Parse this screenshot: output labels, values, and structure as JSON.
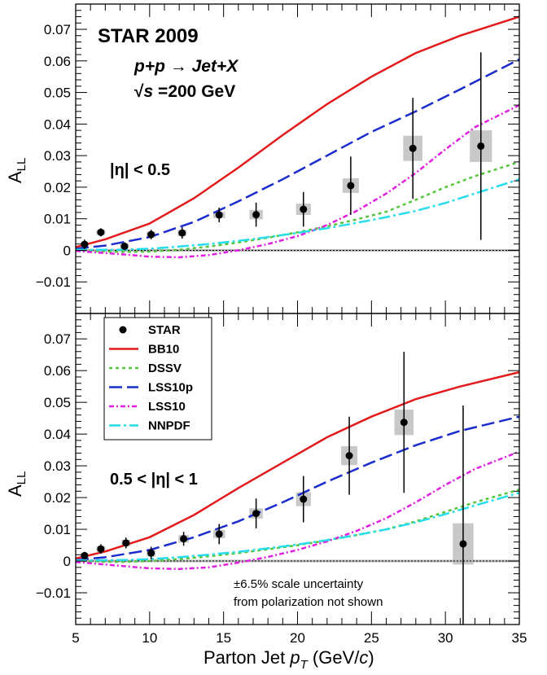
{
  "chart_data": [
    {
      "type": "scatter",
      "panel": "top",
      "ylabel_main": "A",
      "ylabel_sub": "LL",
      "xlim": [
        5,
        35
      ],
      "ylim": [
        -0.02,
        0.078
      ],
      "yticks": [
        -0.01,
        0,
        0.01,
        0.02,
        0.03,
        0.04,
        0.05,
        0.06,
        0.07
      ],
      "ytick_labels": [
        "−0.01",
        "0",
        "0.01",
        "0.02",
        "0.03",
        "0.04",
        "0.05",
        "0.06",
        "0.07"
      ],
      "annotations": {
        "title": "STAR 2009",
        "process": "p+p → Jet+X",
        "energy_prefix": "√",
        "energy_s": "s",
        "energy_value": " =200 GeV",
        "eta_range": "|η| < 0.5"
      },
      "points": [
        {
          "x": 5.6,
          "y": 0.0019,
          "err": 0.0015,
          "sx": 0.5,
          "sy": 0.0009
        },
        {
          "x": 6.7,
          "y": 0.0057,
          "err": 0.0013,
          "sx": 0.6,
          "sy": 0.0008
        },
        {
          "x": 8.3,
          "y": 0.0013,
          "err": 0.0012,
          "sx": 0.6,
          "sy": 0.0008
        },
        {
          "x": 10.1,
          "y": 0.005,
          "err": 0.0015,
          "sx": 0.6,
          "sy": 0.0009
        },
        {
          "x": 12.2,
          "y": 0.0055,
          "err": 0.0018,
          "sx": 0.6,
          "sy": 0.001
        },
        {
          "x": 14.7,
          "y": 0.0112,
          "err": 0.0023,
          "sx": 0.8,
          "sy": 0.001
        },
        {
          "x": 17.2,
          "y": 0.0113,
          "err": 0.0038,
          "sx": 0.9,
          "sy": 0.0015
        },
        {
          "x": 20.4,
          "y": 0.013,
          "err": 0.0055,
          "sx": 1.0,
          "sy": 0.0018
        },
        {
          "x": 23.6,
          "y": 0.0205,
          "err": 0.0092,
          "sx": 1.1,
          "sy": 0.0023
        },
        {
          "x": 27.8,
          "y": 0.0323,
          "err": 0.016,
          "sx": 1.3,
          "sy": 0.004
        },
        {
          "x": 32.4,
          "y": 0.033,
          "err": 0.0297,
          "sx": 1.5,
          "sy": 0.005
        }
      ],
      "series": [
        {
          "name": "BB10",
          "color": "#e31a1c",
          "dash": "none",
          "x": [
            5,
            7,
            10,
            13,
            16,
            19,
            22,
            25,
            28,
            31,
            35
          ],
          "y": [
            0.001,
            0.0035,
            0.0085,
            0.0165,
            0.0262,
            0.0365,
            0.0463,
            0.055,
            0.0625,
            0.068,
            0.074
          ]
        },
        {
          "name": "DSSV",
          "color": "#55c43a",
          "dash": "4,4",
          "x": [
            5,
            8,
            10,
            12,
            14,
            16,
            18,
            20,
            22,
            24,
            26,
            28,
            30,
            32,
            35
          ],
          "y": [
            0.0,
            -0.0005,
            -0.0004,
            0.0002,
            0.0012,
            0.0025,
            0.004,
            0.0057,
            0.0076,
            0.0098,
            0.0122,
            0.016,
            0.02,
            0.0235,
            0.028
          ]
        },
        {
          "name": "LSS10p",
          "color": "#1a2ccc",
          "dash": "16,6",
          "x": [
            5,
            7,
            10,
            13,
            16,
            19,
            22,
            25,
            28,
            31,
            35
          ],
          "y": [
            0.0005,
            0.0015,
            0.0042,
            0.009,
            0.0155,
            0.0225,
            0.03,
            0.0375,
            0.044,
            0.051,
            0.0605
          ]
        },
        {
          "name": "LSS10",
          "color": "#e020e0",
          "dash": "6,3,2,3",
          "x": [
            5,
            8,
            10,
            12,
            14,
            16,
            18,
            20,
            22,
            24,
            26,
            28,
            30,
            32,
            35
          ],
          "y": [
            -0.0002,
            -0.0012,
            -0.002,
            -0.0022,
            -0.0015,
            0.0,
            0.002,
            0.0045,
            0.008,
            0.0125,
            0.018,
            0.0245,
            0.032,
            0.039,
            0.046
          ]
        },
        {
          "name": "NNPDF",
          "color": "#27dcea",
          "dash": "14,4,3,4",
          "x": [
            5,
            8,
            10,
            12,
            14,
            16,
            18,
            20,
            22,
            24,
            26,
            28,
            30,
            32,
            35
          ],
          "y": [
            0.0002,
            0.0002,
            0.0005,
            0.0012,
            0.002,
            0.003,
            0.0042,
            0.0055,
            0.007,
            0.0087,
            0.0105,
            0.0125,
            0.015,
            0.018,
            0.0225
          ]
        }
      ]
    },
    {
      "type": "scatter",
      "panel": "bottom",
      "ylabel_main": "A",
      "ylabel_sub": "LL",
      "xlabel_main": "Parton Jet ",
      "xlabel_p": "p",
      "xlabel_sub": "T",
      "xlabel_unit_pre": " (GeV/",
      "xlabel_c": "c",
      "xlabel_unit_post": ")",
      "xlim": [
        5,
        35
      ],
      "ylim": [
        -0.02,
        0.078
      ],
      "xticks": [
        5,
        10,
        15,
        20,
        25,
        30,
        35
      ],
      "xtick_labels": [
        "5",
        "10",
        "15",
        "20",
        "25",
        "30",
        "35"
      ],
      "yticks": [
        -0.01,
        0,
        0.01,
        0.02,
        0.03,
        0.04,
        0.05,
        0.06,
        0.07
      ],
      "ytick_labels": [
        "−0.01",
        "0",
        "0.01",
        "0.02",
        "0.03",
        "0.04",
        "0.05",
        "0.06",
        "0.07"
      ],
      "annotations": {
        "eta_range": "0.5 < |η| < 1",
        "note_line1": "±6.5% scale uncertainty",
        "note_line2": "from polarization not shown"
      },
      "legend": [
        "STAR",
        "BB10",
        "DSSV",
        "LSS10p",
        "LSS10",
        "NNPDF"
      ],
      "points": [
        {
          "x": 5.6,
          "y": 0.0017,
          "err": 0.0012,
          "sx": 0.5,
          "sy": 0.0009
        },
        {
          "x": 6.7,
          "y": 0.0038,
          "err": 0.0015,
          "sx": 0.6,
          "sy": 0.0009
        },
        {
          "x": 8.4,
          "y": 0.0057,
          "err": 0.0017,
          "sx": 0.6,
          "sy": 0.001
        },
        {
          "x": 10.1,
          "y": 0.0025,
          "err": 0.002,
          "sx": 0.6,
          "sy": 0.0011
        },
        {
          "x": 12.3,
          "y": 0.007,
          "err": 0.0022,
          "sx": 0.7,
          "sy": 0.0012
        },
        {
          "x": 14.7,
          "y": 0.0085,
          "err": 0.0032,
          "sx": 0.8,
          "sy": 0.0013
        },
        {
          "x": 17.2,
          "y": 0.015,
          "err": 0.0047,
          "sx": 0.9,
          "sy": 0.0016
        },
        {
          "x": 20.4,
          "y": 0.0195,
          "err": 0.0073,
          "sx": 1.0,
          "sy": 0.0022
        },
        {
          "x": 23.5,
          "y": 0.0332,
          "err": 0.0123,
          "sx": 1.1,
          "sy": 0.003
        },
        {
          "x": 27.2,
          "y": 0.0437,
          "err": 0.0222,
          "sx": 1.3,
          "sy": 0.004
        },
        {
          "x": 31.2,
          "y": 0.0054,
          "err": 0.0436,
          "sx": 1.4,
          "sy": 0.0065
        }
      ],
      "series": [
        {
          "name": "BB10",
          "color": "#e31a1c",
          "dash": "none",
          "x": [
            5,
            7,
            10,
            13,
            16,
            19,
            22,
            25,
            28,
            31,
            35
          ],
          "y": [
            0.0008,
            0.003,
            0.0075,
            0.0145,
            0.023,
            0.031,
            0.039,
            0.0455,
            0.051,
            0.055,
            0.0595
          ]
        },
        {
          "name": "DSSV",
          "color": "#55c43a",
          "dash": "4,4",
          "x": [
            5,
            8,
            10,
            12,
            14,
            16,
            18,
            20,
            22,
            24,
            26,
            28,
            30,
            32,
            35
          ],
          "y": [
            0.0,
            -0.0003,
            0.0,
            0.0006,
            0.0015,
            0.0025,
            0.0037,
            0.005,
            0.0065,
            0.0082,
            0.01,
            0.0125,
            0.0155,
            0.0185,
            0.0225
          ]
        },
        {
          "name": "LSS10p",
          "color": "#1a2ccc",
          "dash": "16,6",
          "x": [
            5,
            7,
            10,
            13,
            16,
            19,
            22,
            25,
            28,
            31,
            35
          ],
          "y": [
            0.0003,
            0.0012,
            0.0035,
            0.0075,
            0.0125,
            0.0185,
            0.025,
            0.031,
            0.0365,
            0.041,
            0.0455
          ]
        },
        {
          "name": "LSS10",
          "color": "#e020e0",
          "dash": "6,3,2,3",
          "x": [
            5,
            8,
            10,
            12,
            14,
            16,
            18,
            20,
            22,
            24,
            26,
            28,
            30,
            32,
            35
          ],
          "y": [
            -0.0003,
            -0.0015,
            -0.0023,
            -0.0025,
            -0.002,
            -0.0005,
            0.0013,
            0.0035,
            0.0062,
            0.0095,
            0.0135,
            0.0185,
            0.024,
            0.029,
            0.0345
          ]
        },
        {
          "name": "NNPDF",
          "color": "#27dcea",
          "dash": "14,4,3,4",
          "x": [
            5,
            8,
            10,
            12,
            14,
            16,
            18,
            20,
            22,
            24,
            26,
            28,
            30,
            32,
            35
          ],
          "y": [
            0.0002,
            0.0003,
            0.0006,
            0.0012,
            0.002,
            0.0029,
            0.004,
            0.0052,
            0.0066,
            0.0082,
            0.01,
            0.0122,
            0.0148,
            0.0175,
            0.0215
          ]
        }
      ]
    }
  ]
}
